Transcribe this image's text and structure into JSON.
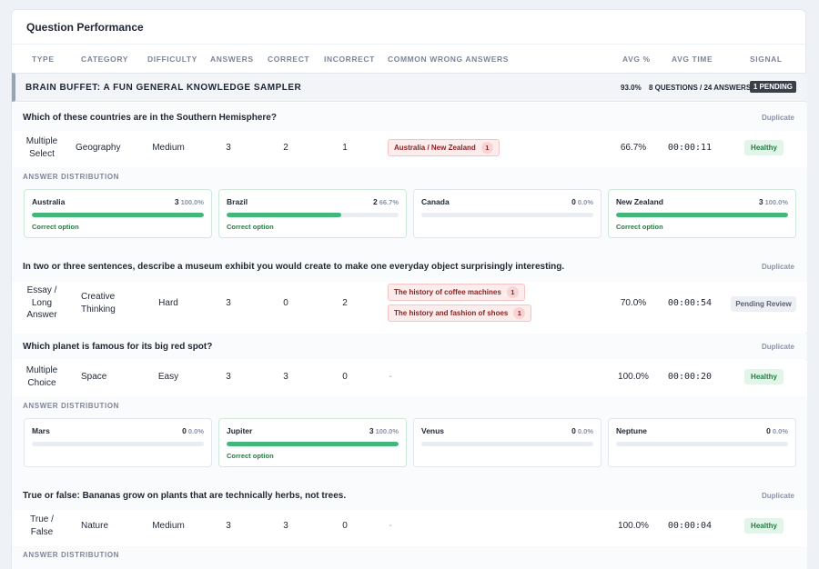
{
  "panel_title": "Question Performance",
  "columns": [
    "TYPE",
    "CATEGORY",
    "DIFFICULTY",
    "ANSWERS",
    "CORRECT",
    "INCORRECT",
    "COMMON WRONG ANSWERS",
    "AVG %",
    "AVG TIME",
    "SIGNAL"
  ],
  "quiz": {
    "title": "BRAIN BUFFET: A FUN GENERAL KNOWLEDGE SAMPLER",
    "avg": "93.0%",
    "counts": "8 QUESTIONS / 24 ANSWERS",
    "pending": "1 PENDING"
  },
  "distribution_label": "ANSWER DISTRIBUTION",
  "duplicate_label": "Duplicate",
  "correct_option_label": "Correct option",
  "questions": [
    {
      "text": "Which of these countries are in the Southern Hemisphere?",
      "type": "Multiple\nSelect",
      "category": "Geography",
      "difficulty": "Medium",
      "answers": "3",
      "correct": "2",
      "incorrect": "1",
      "wrong_answers": [
        {
          "text": "Australia / New Zealand",
          "count": "1"
        }
      ],
      "avg": "66.7%",
      "time": "00:00:11",
      "signal": "Healthy",
      "options": [
        {
          "name": "Australia",
          "count": "3",
          "pct": "100.0%",
          "fraction": 1.0,
          "correct": true
        },
        {
          "name": "Brazil",
          "count": "2",
          "pct": "66.7%",
          "fraction": 0.667,
          "correct": true
        },
        {
          "name": "Canada",
          "count": "0",
          "pct": "0.0%",
          "fraction": 0,
          "correct": false
        },
        {
          "name": "New Zealand",
          "count": "3",
          "pct": "100.0%",
          "fraction": 1.0,
          "correct": true
        }
      ]
    },
    {
      "text": "In two or three sentences, describe a museum exhibit you would create to make one everyday object surprisingly interesting.",
      "type": "Essay /\nLong\nAnswer",
      "category": "Creative\nThinking",
      "difficulty": "Hard",
      "answers": "3",
      "correct": "0",
      "incorrect": "2",
      "wrong_answers": [
        {
          "text": "The history of coffee machines",
          "count": "1"
        },
        {
          "text": "The history and fashion of shoes",
          "count": "1"
        }
      ],
      "avg": "70.0%",
      "time": "00:00:54",
      "signal": "Pending Review"
    },
    {
      "text": "Which planet is famous for its big red spot?",
      "type": "Multiple\nChoice",
      "category": "Space",
      "difficulty": "Easy",
      "answers": "3",
      "correct": "3",
      "incorrect": "0",
      "wrong_none": "-",
      "avg": "100.0%",
      "time": "00:00:20",
      "signal": "Healthy",
      "options": [
        {
          "name": "Mars",
          "count": "0",
          "pct": "0.0%",
          "fraction": 0,
          "correct": false
        },
        {
          "name": "Jupiter",
          "count": "3",
          "pct": "100.0%",
          "fraction": 1.0,
          "correct": true
        },
        {
          "name": "Venus",
          "count": "0",
          "pct": "0.0%",
          "fraction": 0,
          "correct": false
        },
        {
          "name": "Neptune",
          "count": "0",
          "pct": "0.0%",
          "fraction": 0,
          "correct": false
        }
      ]
    },
    {
      "text": "True or false: Bananas grow on plants that are technically herbs, not trees.",
      "type": "True /\nFalse",
      "category": "Nature",
      "difficulty": "Medium",
      "answers": "3",
      "correct": "3",
      "incorrect": "0",
      "wrong_none": "-",
      "avg": "100.0%",
      "time": "00:00:04",
      "signal": "Healthy"
    }
  ],
  "colors": {
    "accent_green": "#41b877",
    "healthy_bg": "#e3f5e9",
    "wrong_bg": "#fdecec"
  }
}
